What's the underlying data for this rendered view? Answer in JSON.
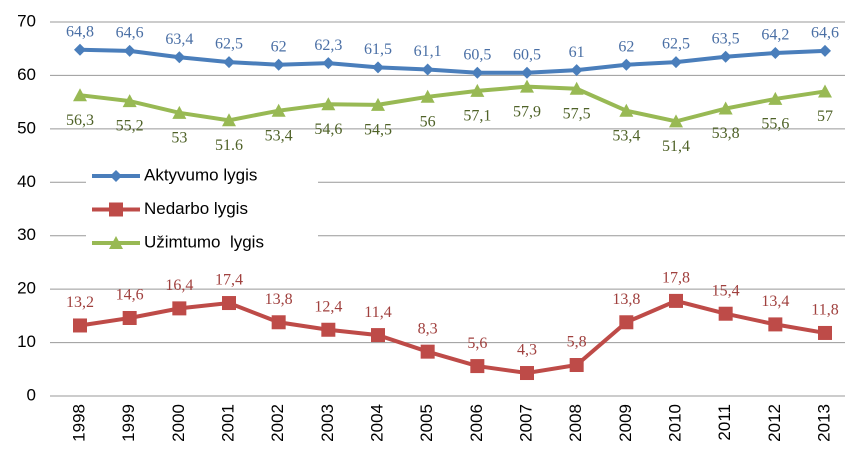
{
  "chart_data": {
    "type": "line",
    "categories": [
      "1998",
      "1999",
      "2000",
      "2001",
      "2002",
      "2003",
      "2004",
      "2005",
      "2006",
      "2007",
      "2008",
      "2009",
      "2010",
      "2011",
      "2012",
      "2013"
    ],
    "series": [
      {
        "name": "Aktyvumo lygis",
        "color": "#4a7ebb",
        "marker": "diamond",
        "label_color": "#4a6fa5",
        "values": [
          64.8,
          64.6,
          63.4,
          62.5,
          62,
          62.3,
          61.5,
          61.1,
          60.5,
          60.5,
          61,
          62,
          62.5,
          63.5,
          64.2,
          64.6
        ],
        "value_labels": [
          "64,8",
          "64,6",
          "63,4",
          "62,5",
          "62",
          "62,3",
          "61,5",
          "61,1",
          "60,5",
          "60,5",
          "61",
          "62",
          "62,5",
          "63,5",
          "64,2",
          "64,6"
        ]
      },
      {
        "name": "Nedarbo lygis",
        "color": "#be4b48",
        "marker": "square",
        "label_color": "#a0403e",
        "values": [
          13.2,
          14.6,
          16.4,
          17.4,
          13.8,
          12.4,
          11.4,
          8.3,
          5.6,
          4.3,
          5.8,
          13.8,
          17.8,
          15.4,
          13.4,
          11.8
        ],
        "value_labels": [
          "13,2",
          "14,6",
          "16,4",
          "17,4",
          "13,8",
          "12,4",
          "11,4",
          "8,3",
          "5,6",
          "4,3",
          "5,8",
          "13,8",
          "17,8",
          "15,4",
          "13,4",
          "11,8"
        ]
      },
      {
        "name": "Užimtumo  lygis",
        "color": "#98b954",
        "marker": "triangle",
        "label_color": "#4f6228",
        "values": [
          56.3,
          55.2,
          53,
          51.6,
          53.4,
          54.6,
          54.5,
          56,
          57.1,
          57.9,
          57.5,
          53.4,
          51.4,
          53.8,
          55.6,
          57
        ],
        "value_labels": [
          "56,3",
          "55,2",
          "53",
          "51.6",
          "53,4",
          "54,6",
          "54,5",
          "56",
          "57,1",
          "57,9",
          "57,5",
          "53,4",
          "51,4",
          "53,8",
          "55,6",
          "57"
        ]
      }
    ],
    "ylim": [
      0,
      70
    ],
    "yticks": [
      0,
      10,
      20,
      30,
      40,
      50,
      60,
      70
    ],
    "grid": true,
    "legend": "upper-left"
  }
}
